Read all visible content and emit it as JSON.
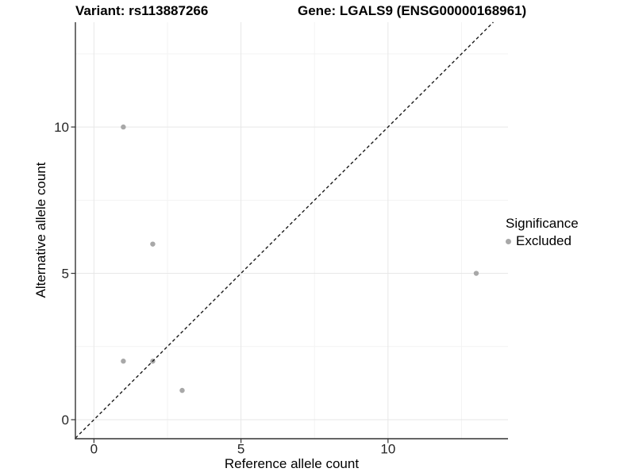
{
  "chart_data": {
    "type": "scatter",
    "titles": {
      "left": "Variant: rs113887266",
      "right": "Gene: LGALS9 (ENSG00000168961)"
    },
    "xlabel": "Reference allele count",
    "ylabel": "Alternative allele count",
    "xlim": [
      -0.63,
      14.08
    ],
    "ylim": [
      -0.65,
      13.58
    ],
    "x_ticks": {
      "values": [
        0,
        5,
        10
      ],
      "labels": [
        "0",
        "5",
        "10"
      ]
    },
    "y_ticks": {
      "values": [
        0,
        5,
        10
      ],
      "labels": [
        "0",
        "5",
        "10"
      ]
    },
    "x_minor_ticks": [
      2.5,
      7.5,
      12.5
    ],
    "y_minor_ticks": [
      2.5,
      7.5,
      12.5
    ],
    "grid": true,
    "series": [
      {
        "name": "Excluded",
        "color": "#a8a8a8",
        "points": [
          [
            1,
            10
          ],
          [
            2,
            6
          ],
          [
            1,
            2
          ],
          [
            2,
            2
          ],
          [
            3,
            1
          ],
          [
            13,
            5
          ]
        ]
      }
    ],
    "reference_line": {
      "type": "identity",
      "slope": 1,
      "intercept": 0,
      "style": "dashed",
      "color": "#1a1a1a"
    },
    "legend": {
      "title": "Significance",
      "position": "right"
    },
    "colors": {
      "grid_major": "#e7e7e7",
      "grid_minor": "#f3f3f3",
      "axis": "#333333",
      "tick_label": "#262626",
      "background": "#ffffff"
    }
  }
}
